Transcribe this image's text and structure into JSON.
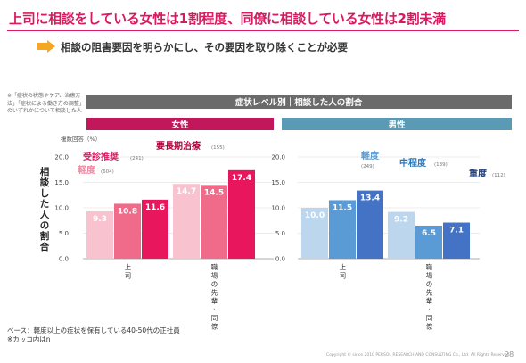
{
  "header": {
    "title": "上司に相談をしている女性は1割程度、同僚に相談している女性は2割未満",
    "subtitle": "相談の阻害要因を明らかにし、その要因を取り除くことが必要"
  },
  "note_left": "※「症状の状態やケア、治療方法」「症状による働き方の調整」のいずれかについて相談した人",
  "footer": {
    "line1": "ベース：軽度以上の症状を保有している40-50代の正社員",
    "line2": "※カッコ内はn"
  },
  "copyright": "Copyright © since 2010 PERSOL RESEARCH AND CONSULTING Co., Ltd. All Rights Reserved.",
  "page_number": "28",
  "colors": {
    "title": "#d81b60",
    "header_bar": "#6b6b6b",
    "female_header": "#c2185b",
    "male_header": "#5a9ab5",
    "female_mild": "#f8c3cf",
    "female_moderate": "#f06b8a",
    "female_severe": "#e8175d",
    "male_mild": "#bcd6ee",
    "male_moderate": "#5b9bd5",
    "male_severe": "#4472c4"
  },
  "chart_data": {
    "type": "bar",
    "title": "症状レベル別｜相談した人の割合",
    "unit_label": "複数回答（%）",
    "ylabel": "相談した人の割合",
    "ylim": [
      0,
      20
    ],
    "yticks": [
      "0.0",
      "5.0",
      "10.0",
      "15.0",
      "20.0"
    ],
    "grid": true,
    "panels": [
      {
        "name": "女性",
        "categories": [
          "上司",
          "職場の先輩・同僚"
        ],
        "series": [
          {
            "name": "軽度",
            "n": "(604)",
            "values": [
              9.3,
              14.7
            ],
            "labels": [
              "9.3",
              "14.7"
            ]
          },
          {
            "name": "受診推奨",
            "n": "(241)",
            "values": [
              10.8,
              14.5
            ],
            "labels": [
              "10.8",
              "14.5"
            ]
          },
          {
            "name": "要長期治療",
            "n": "(155)",
            "values": [
              11.6,
              17.4
            ],
            "labels": [
              "11.6",
              "17.4"
            ]
          }
        ]
      },
      {
        "name": "男性",
        "categories": [
          "上司",
          "職場の先輩・同僚"
        ],
        "series": [
          {
            "name": "軽度",
            "n": "(249)",
            "values": [
              10.0,
              9.2
            ],
            "labels": [
              "10.0",
              "9.2"
            ]
          },
          {
            "name": "中程度",
            "n": "(139)",
            "values": [
              11.5,
              6.5
            ],
            "labels": [
              "11.5",
              "6.5"
            ]
          },
          {
            "name": "重度",
            "n": "(112)",
            "values": [
              13.4,
              7.1
            ],
            "labels": [
              "13.4",
              "7.1"
            ]
          }
        ]
      }
    ]
  }
}
